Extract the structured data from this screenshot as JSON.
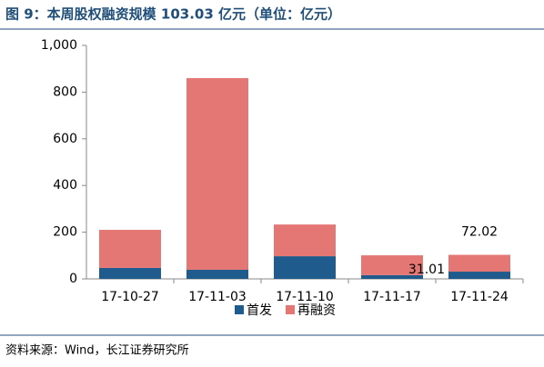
{
  "chart_data": {
    "type": "stacked_bar",
    "title": "图 9：本周股权融资规模 103.03 亿元（单位：亿元）",
    "source": "资料来源：Wind，长江证券研究所",
    "categories": [
      "17-10-27",
      "17-11-03",
      "17-11-10",
      "17-11-17",
      "17-11-24"
    ],
    "series": [
      {
        "name": "首发",
        "color": "#1f5b8c",
        "values": [
          47,
          39,
          97,
          16,
          31.01
        ]
      },
      {
        "name": "再融资",
        "color": "#e47674",
        "values": [
          163,
          821,
          136,
          85,
          72.02
        ]
      }
    ],
    "labeled_category": 4,
    "ylim": [
      0,
      1000
    ],
    "yticks": [
      0,
      200,
      400,
      600,
      800,
      {
        "value": 1000,
        "label": "1,000"
      }
    ],
    "legend": "bottom"
  }
}
